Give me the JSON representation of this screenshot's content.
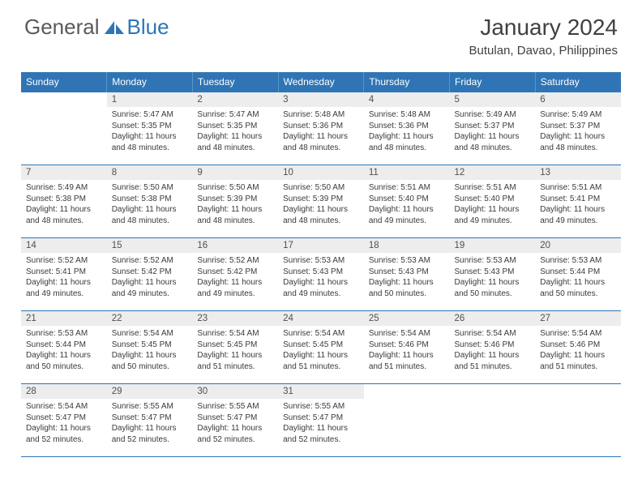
{
  "brand": {
    "part1": "General",
    "part2": "Blue"
  },
  "title": "January 2024",
  "location": "Butulan, Davao, Philippines",
  "colors": {
    "header_bg": "#2f75b5",
    "header_text": "#ffffff",
    "daynum_bg": "#ededed",
    "row_border": "#2f75b5",
    "body_text": "#3a3a3a",
    "title_text": "#404040"
  },
  "weekdays": [
    "Sunday",
    "Monday",
    "Tuesday",
    "Wednesday",
    "Thursday",
    "Friday",
    "Saturday"
  ],
  "first_weekday_index": 1,
  "days": [
    {
      "n": 1,
      "sunrise": "5:47 AM",
      "sunset": "5:35 PM",
      "daylight": "11 hours and 48 minutes."
    },
    {
      "n": 2,
      "sunrise": "5:47 AM",
      "sunset": "5:35 PM",
      "daylight": "11 hours and 48 minutes."
    },
    {
      "n": 3,
      "sunrise": "5:48 AM",
      "sunset": "5:36 PM",
      "daylight": "11 hours and 48 minutes."
    },
    {
      "n": 4,
      "sunrise": "5:48 AM",
      "sunset": "5:36 PM",
      "daylight": "11 hours and 48 minutes."
    },
    {
      "n": 5,
      "sunrise": "5:49 AM",
      "sunset": "5:37 PM",
      "daylight": "11 hours and 48 minutes."
    },
    {
      "n": 6,
      "sunrise": "5:49 AM",
      "sunset": "5:37 PM",
      "daylight": "11 hours and 48 minutes."
    },
    {
      "n": 7,
      "sunrise": "5:49 AM",
      "sunset": "5:38 PM",
      "daylight": "11 hours and 48 minutes."
    },
    {
      "n": 8,
      "sunrise": "5:50 AM",
      "sunset": "5:38 PM",
      "daylight": "11 hours and 48 minutes."
    },
    {
      "n": 9,
      "sunrise": "5:50 AM",
      "sunset": "5:39 PM",
      "daylight": "11 hours and 48 minutes."
    },
    {
      "n": 10,
      "sunrise": "5:50 AM",
      "sunset": "5:39 PM",
      "daylight": "11 hours and 48 minutes."
    },
    {
      "n": 11,
      "sunrise": "5:51 AM",
      "sunset": "5:40 PM",
      "daylight": "11 hours and 49 minutes."
    },
    {
      "n": 12,
      "sunrise": "5:51 AM",
      "sunset": "5:40 PM",
      "daylight": "11 hours and 49 minutes."
    },
    {
      "n": 13,
      "sunrise": "5:51 AM",
      "sunset": "5:41 PM",
      "daylight": "11 hours and 49 minutes."
    },
    {
      "n": 14,
      "sunrise": "5:52 AM",
      "sunset": "5:41 PM",
      "daylight": "11 hours and 49 minutes."
    },
    {
      "n": 15,
      "sunrise": "5:52 AM",
      "sunset": "5:42 PM",
      "daylight": "11 hours and 49 minutes."
    },
    {
      "n": 16,
      "sunrise": "5:52 AM",
      "sunset": "5:42 PM",
      "daylight": "11 hours and 49 minutes."
    },
    {
      "n": 17,
      "sunrise": "5:53 AM",
      "sunset": "5:43 PM",
      "daylight": "11 hours and 49 minutes."
    },
    {
      "n": 18,
      "sunrise": "5:53 AM",
      "sunset": "5:43 PM",
      "daylight": "11 hours and 50 minutes."
    },
    {
      "n": 19,
      "sunrise": "5:53 AM",
      "sunset": "5:43 PM",
      "daylight": "11 hours and 50 minutes."
    },
    {
      "n": 20,
      "sunrise": "5:53 AM",
      "sunset": "5:44 PM",
      "daylight": "11 hours and 50 minutes."
    },
    {
      "n": 21,
      "sunrise": "5:53 AM",
      "sunset": "5:44 PM",
      "daylight": "11 hours and 50 minutes."
    },
    {
      "n": 22,
      "sunrise": "5:54 AM",
      "sunset": "5:45 PM",
      "daylight": "11 hours and 50 minutes."
    },
    {
      "n": 23,
      "sunrise": "5:54 AM",
      "sunset": "5:45 PM",
      "daylight": "11 hours and 51 minutes."
    },
    {
      "n": 24,
      "sunrise": "5:54 AM",
      "sunset": "5:45 PM",
      "daylight": "11 hours and 51 minutes."
    },
    {
      "n": 25,
      "sunrise": "5:54 AM",
      "sunset": "5:46 PM",
      "daylight": "11 hours and 51 minutes."
    },
    {
      "n": 26,
      "sunrise": "5:54 AM",
      "sunset": "5:46 PM",
      "daylight": "11 hours and 51 minutes."
    },
    {
      "n": 27,
      "sunrise": "5:54 AM",
      "sunset": "5:46 PM",
      "daylight": "11 hours and 51 minutes."
    },
    {
      "n": 28,
      "sunrise": "5:54 AM",
      "sunset": "5:47 PM",
      "daylight": "11 hours and 52 minutes."
    },
    {
      "n": 29,
      "sunrise": "5:55 AM",
      "sunset": "5:47 PM",
      "daylight": "11 hours and 52 minutes."
    },
    {
      "n": 30,
      "sunrise": "5:55 AM",
      "sunset": "5:47 PM",
      "daylight": "11 hours and 52 minutes."
    },
    {
      "n": 31,
      "sunrise": "5:55 AM",
      "sunset": "5:47 PM",
      "daylight": "11 hours and 52 minutes."
    }
  ],
  "labels": {
    "sunrise": "Sunrise:",
    "sunset": "Sunset:",
    "daylight": "Daylight:"
  }
}
